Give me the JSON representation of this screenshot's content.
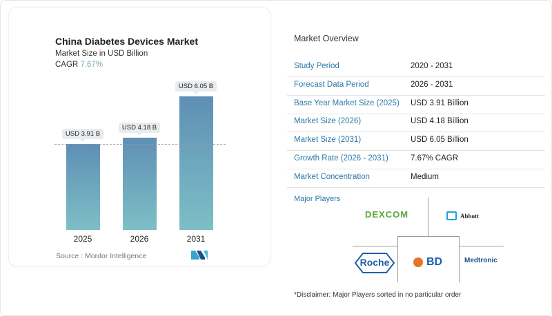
{
  "chart_card": {
    "title": "China Diabetes Devices Market",
    "subtitle": "Market Size in USD Billion",
    "cagr_label": "CAGR",
    "cagr_value": "7.67%",
    "source": "Source :  Mordor Intelligence",
    "logo": "Mordor Intelligence MI logo"
  },
  "chart_data": {
    "type": "bar",
    "categories": [
      "2025",
      "2026",
      "2031"
    ],
    "values": [
      3.91,
      4.18,
      6.05
    ],
    "data_labels": [
      "USD 3.91 B",
      "USD 4.18 B",
      "USD 6.05 B"
    ],
    "title": "China Diabetes Devices Market",
    "ylabel": "Market Size in USD Billion",
    "colors": {
      "bar_top": "#5f8fb5",
      "bar_bottom": "#7dbfc6"
    },
    "reference_line": 3.91,
    "grid": false
  },
  "overview": {
    "heading": "Market Overview",
    "rows": [
      {
        "label": "Study Period",
        "value": "2020 - 2031"
      },
      {
        "label": "Forecast Data Period",
        "value": "2026 - 2031"
      },
      {
        "label": "Base Year Market Size (2025)",
        "value": "USD 3.91 Billion"
      },
      {
        "label": "Market Size (2026)",
        "value": "USD 4.18 Billion"
      },
      {
        "label": "Market Size (2031)",
        "value": "USD 6.05 Billion"
      },
      {
        "label": "Growth Rate (2026 - 2031)",
        "value": "7.67% CAGR"
      },
      {
        "label": "Market Concentration",
        "value": "Medium"
      }
    ]
  },
  "players": {
    "heading": "Major Players",
    "logos": [
      "Dexcom",
      "Abbott",
      "Roche",
      "BD",
      "Medtronic"
    ],
    "dexcom_text": "DEXCOM",
    "abbott_text": "Abbott",
    "roche_text": "Roche",
    "bd_text": "BD",
    "medtronic_text": "Medtronic"
  },
  "disclaimer": "*Disclaimer: Major Players sorted in no particular order"
}
